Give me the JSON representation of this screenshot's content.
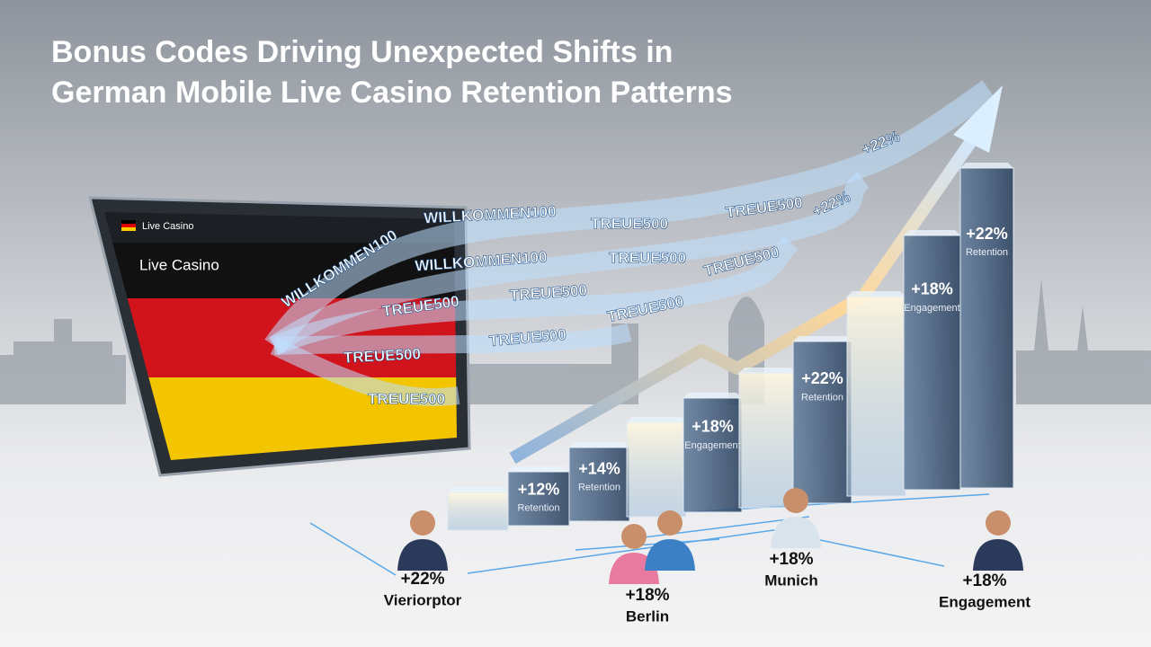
{
  "header": {
    "title_line1": "Bonus Codes Driving Unexpected Shifts in",
    "title_line2": "German Mobile Live Casino Retention Patterns"
  },
  "tablet": {
    "header_label": "Live Casino",
    "screen_label": "Live Casino"
  },
  "ribbons": [
    "WILLKOMMEN100",
    "WILLKOMMEN100",
    "TREUE500",
    "TREUE500",
    "+22%",
    "WILLKOMMEN100",
    "TREUE500",
    "+22%",
    "TREUE500",
    "TREUE500",
    "TREUE500",
    "TREUE500",
    "TREUE500",
    "TREUE500",
    "TREUE500"
  ],
  "bars": [
    {
      "value": "+12%",
      "label": "Retention"
    },
    {
      "value": "+14%",
      "label": "Retention"
    },
    {
      "value": "+18%",
      "label": "Engagement"
    },
    {
      "value": "+22%",
      "label": "Retention"
    },
    {
      "value": "+18%",
      "label": "Engagement"
    },
    {
      "value": "+22%",
      "label": "Retention"
    }
  ],
  "people": [
    {
      "value": "+22%",
      "label": "Vieriorptor"
    },
    {
      "value": "+18%",
      "label": "Berlin"
    },
    {
      "value": "+18%",
      "label": "Munich"
    },
    {
      "value": "+18%",
      "label": "Engagement"
    }
  ]
}
